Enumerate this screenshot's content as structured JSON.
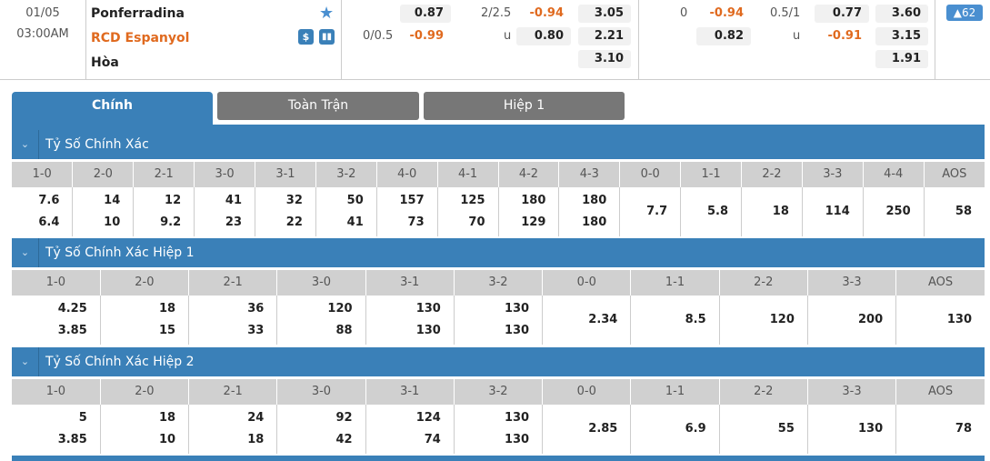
{
  "match": {
    "date": "01/05",
    "time": "03:00AM",
    "home": "Ponferradina",
    "away": "RCD Espanyol",
    "draw": "Hòa",
    "ft_handicap": {
      "line": "0/0.5",
      "home": "0.87",
      "away": "-0.99"
    },
    "ft_ou": {
      "line": "2/2.5",
      "over": "-0.94",
      "under_label": "u",
      "under": "0.80"
    },
    "ft_1x2": {
      "home": "3.05",
      "away": "2.21",
      "draw": "3.10"
    },
    "h1_handicap": {
      "line": "0",
      "home": "-0.94",
      "away": "0.82"
    },
    "h1_ou": {
      "line": "0.5/1",
      "over": "0.77",
      "under_label": "u",
      "under": "-0.91"
    },
    "h1_1x2": {
      "home": "3.60",
      "away": "3.15",
      "draw": "1.91"
    },
    "more_count": "▲62"
  },
  "tabs": [
    {
      "label": "Chính"
    },
    {
      "label": "Toàn Trận"
    },
    {
      "label": "Hiệp 1"
    }
  ],
  "sections": [
    {
      "title": "Tỷ Số Chính Xác",
      "headers": [
        "1-0",
        "2-0",
        "2-1",
        "3-0",
        "3-1",
        "3-2",
        "4-0",
        "4-1",
        "4-2",
        "4-3",
        "0-0",
        "1-1",
        "2-2",
        "3-3",
        "4-4",
        "AOS"
      ],
      "values": [
        [
          "7.6",
          "6.4"
        ],
        [
          "14",
          "10"
        ],
        [
          "12",
          "9.2"
        ],
        [
          "41",
          "23"
        ],
        [
          "32",
          "22"
        ],
        [
          "50",
          "41"
        ],
        [
          "157",
          "73"
        ],
        [
          "125",
          "70"
        ],
        [
          "180",
          "129"
        ],
        [
          "180",
          "180"
        ],
        [
          "7.7"
        ],
        [
          "5.8"
        ],
        [
          "18"
        ],
        [
          "114"
        ],
        [
          "250"
        ],
        [
          "58"
        ]
      ]
    },
    {
      "title": "Tỷ Số Chính Xác Hiệp 1",
      "headers": [
        "1-0",
        "2-0",
        "2-1",
        "3-0",
        "3-1",
        "3-2",
        "0-0",
        "1-1",
        "2-2",
        "3-3",
        "AOS"
      ],
      "values": [
        [
          "4.25",
          "3.85"
        ],
        [
          "18",
          "15"
        ],
        [
          "36",
          "33"
        ],
        [
          "120",
          "88"
        ],
        [
          "130",
          "130"
        ],
        [
          "130",
          "130"
        ],
        [
          "2.34"
        ],
        [
          "8.5"
        ],
        [
          "120"
        ],
        [
          "200"
        ],
        [
          "130"
        ]
      ]
    },
    {
      "title": "Tỷ Số Chính Xác Hiệp 2",
      "headers": [
        "1-0",
        "2-0",
        "2-1",
        "3-0",
        "3-1",
        "3-2",
        "0-0",
        "1-1",
        "2-2",
        "3-3",
        "AOS"
      ],
      "values": [
        [
          "5",
          "3.85"
        ],
        [
          "18",
          "10"
        ],
        [
          "24",
          "18"
        ],
        [
          "92",
          "42"
        ],
        [
          "124",
          "74"
        ],
        [
          "130",
          "130"
        ],
        [
          "2.85"
        ],
        [
          "6.9"
        ],
        [
          "55"
        ],
        [
          "130"
        ],
        [
          "78"
        ]
      ]
    }
  ],
  "colors": {
    "primary": "#3a80b8",
    "accent_orange": "#e06a1f",
    "tab_inactive": "#777777"
  }
}
